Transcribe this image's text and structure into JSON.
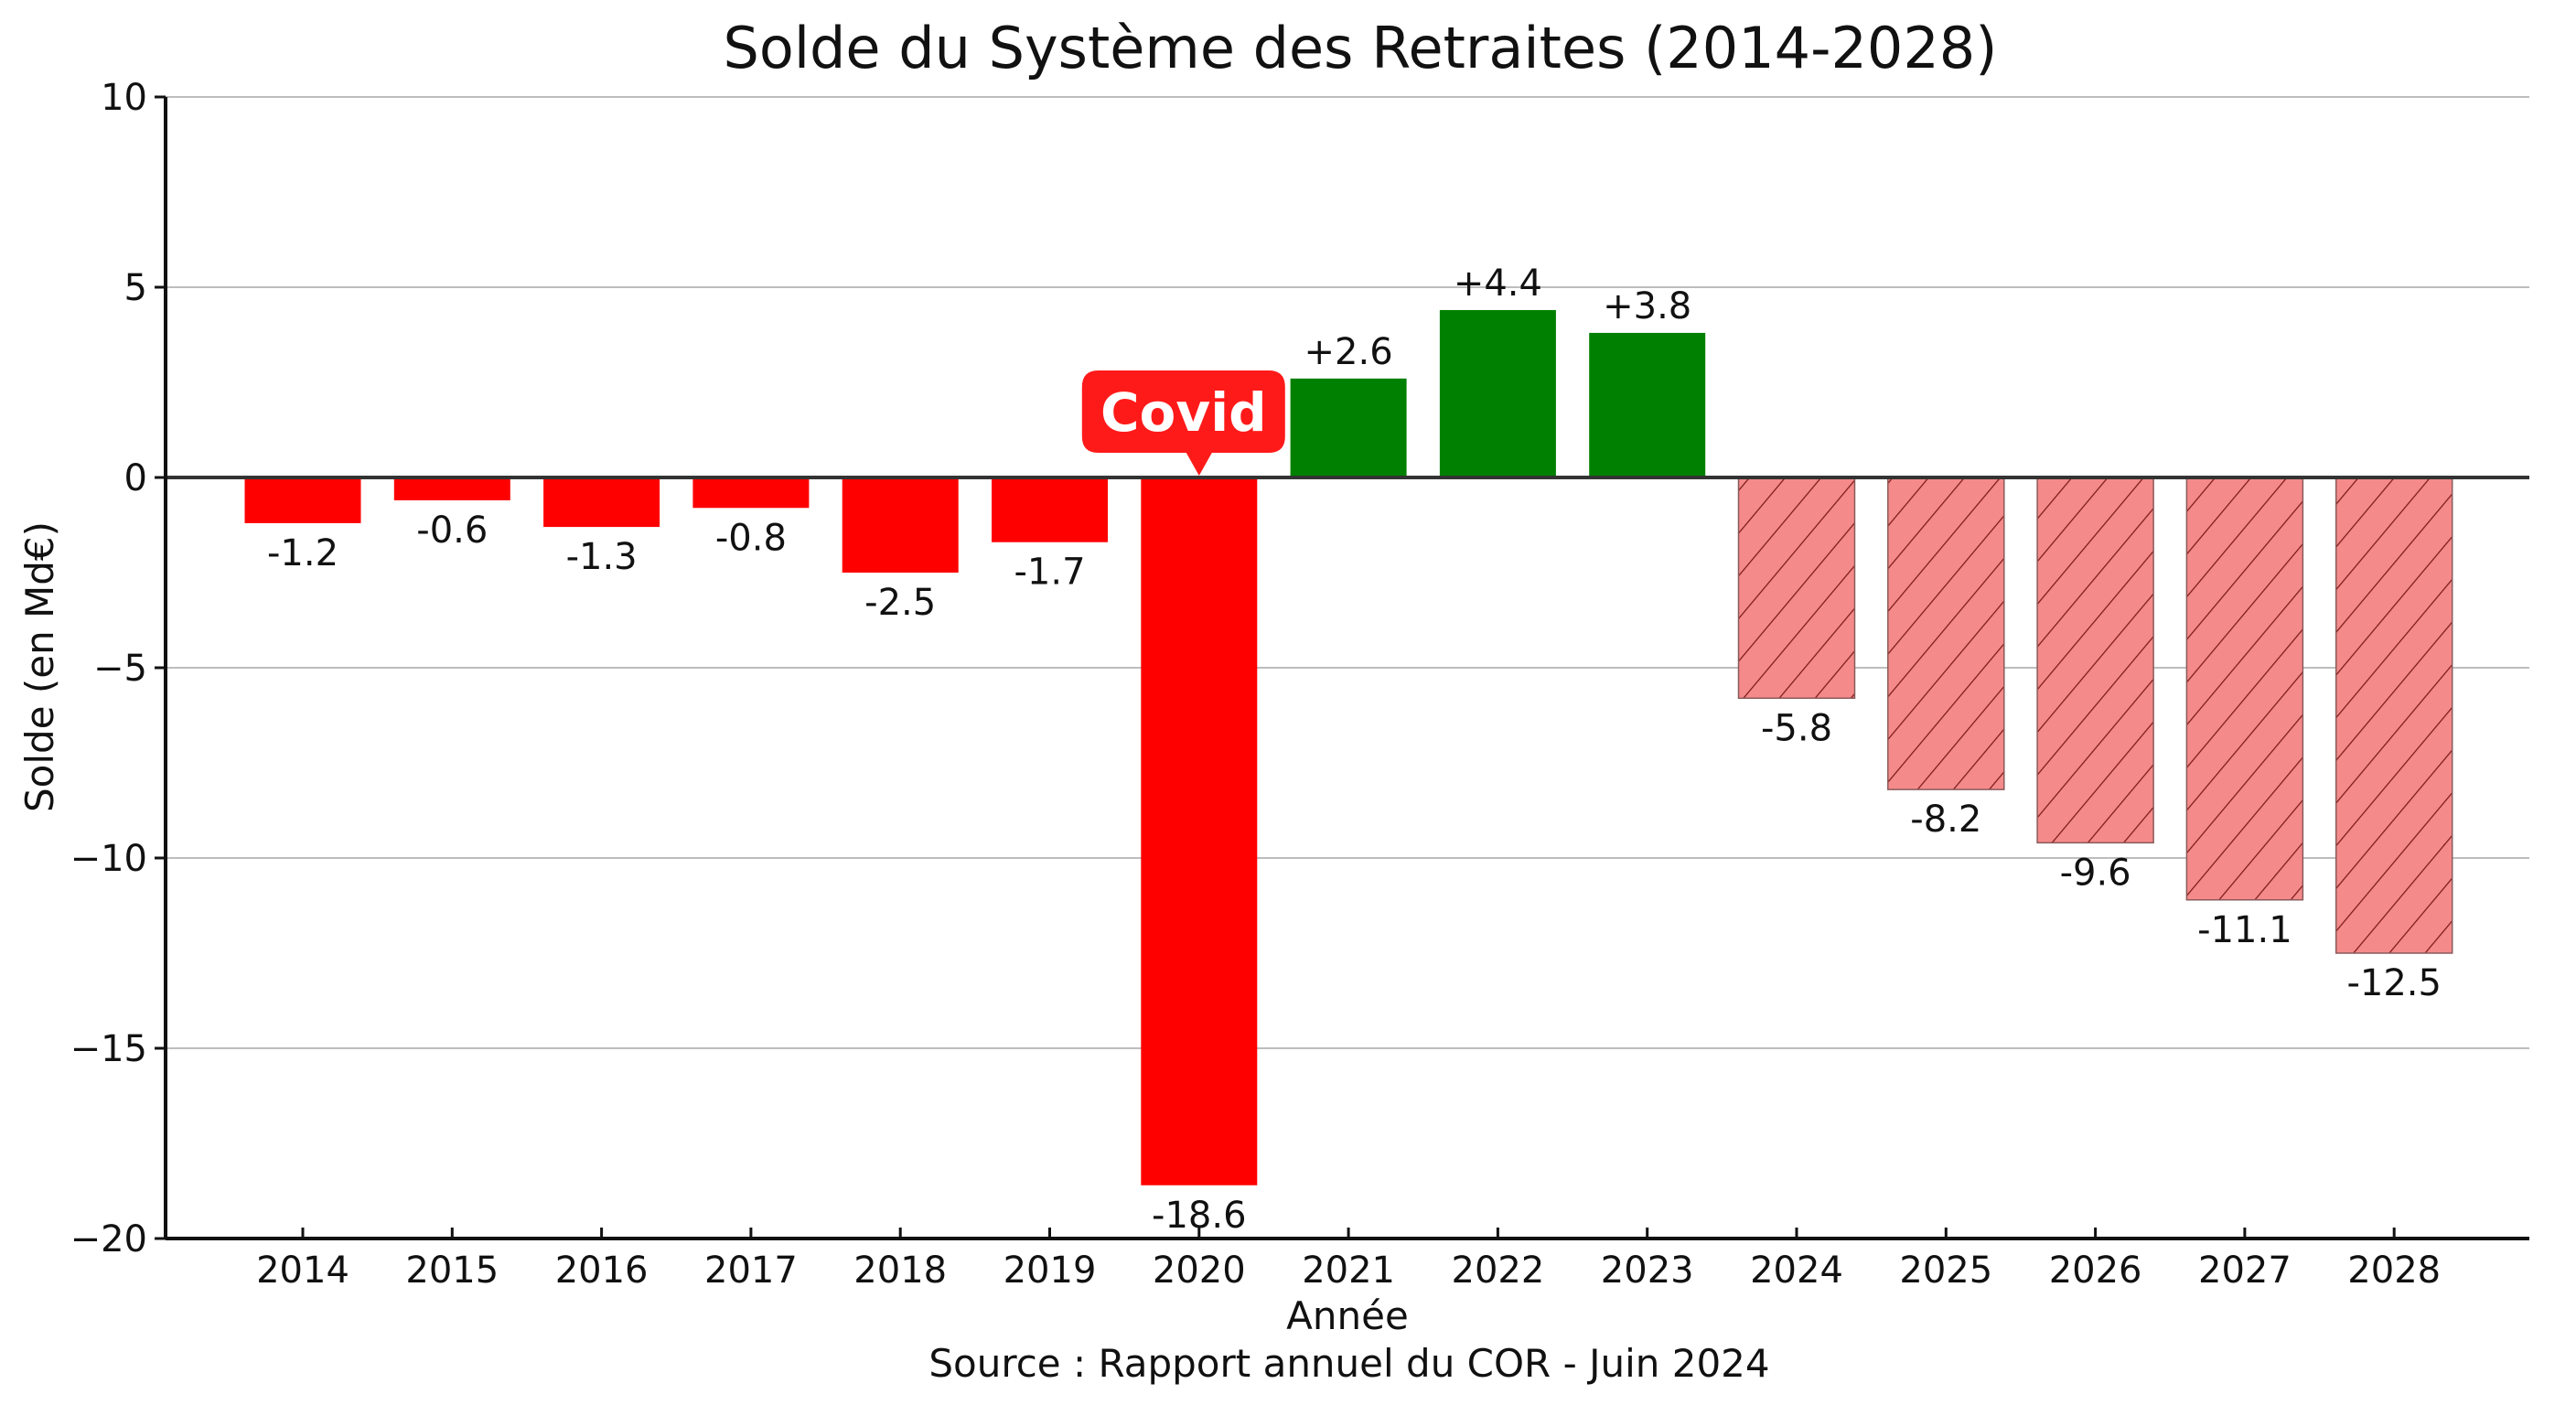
{
  "chart_data": {
    "type": "bar",
    "title": "Solde du Système des Retraites (2014-2028)",
    "xlabel": "Année",
    "ylabel": "Solde (en Md€)",
    "source": "Source : Rapport annuel du COR - Juin 2024",
    "ylim": [
      -20,
      10
    ],
    "yticks": [
      10,
      5,
      0,
      -5,
      -10,
      -15,
      -20
    ],
    "ytick_labels": [
      "10",
      "5",
      "0",
      "−5",
      "−10",
      "−15",
      "−20"
    ],
    "grid": "horizontal",
    "categories": [
      "2014",
      "2015",
      "2016",
      "2017",
      "2018",
      "2019",
      "2020",
      "2021",
      "2022",
      "2023",
      "2024",
      "2025",
      "2026",
      "2027",
      "2028"
    ],
    "values": [
      -1.2,
      -0.6,
      -1.3,
      -0.8,
      -2.5,
      -1.7,
      -18.6,
      2.6,
      4.4,
      3.8,
      -5.8,
      -8.2,
      -9.6,
      -11.1,
      -12.5
    ],
    "data_labels": [
      "-1.2",
      "-0.6",
      "-1.3",
      "-0.8",
      "-2.5",
      "-1.7",
      "-18.6",
      "+2.6",
      "+4.4",
      "+3.8",
      "-5.8",
      "-8.2",
      "-9.6",
      "-11.1",
      "-12.5"
    ],
    "bar_kind": [
      "deficit",
      "deficit",
      "deficit",
      "deficit",
      "deficit",
      "deficit",
      "deficit",
      "surplus",
      "surplus",
      "surplus",
      "projection",
      "projection",
      "projection",
      "projection",
      "projection"
    ],
    "colors": {
      "deficit": "#ff0000",
      "surplus": "#008000",
      "projection_fill": "#f58a8a",
      "projection_hatch": "#7a1a1a",
      "callout": "#ff1a1a"
    },
    "annotations": [
      {
        "text": "Covid",
        "category": "2020",
        "style": "callout"
      }
    ]
  }
}
